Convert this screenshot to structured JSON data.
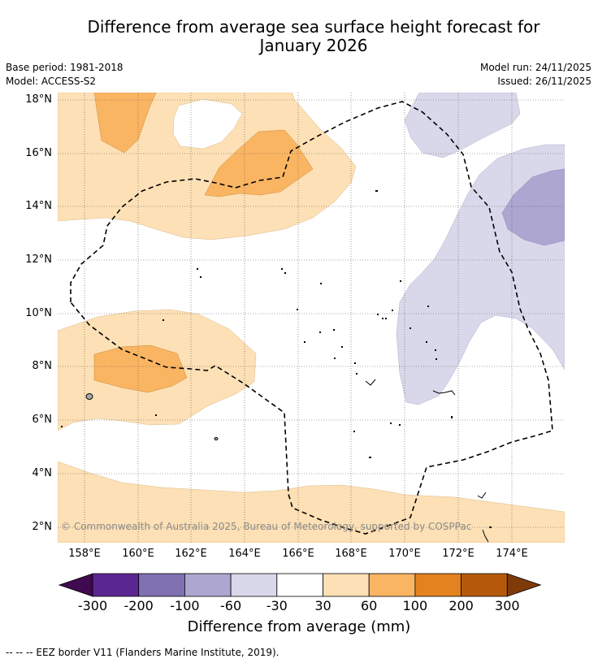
{
  "title_line1": "Difference from average sea surface height forecast for",
  "title_line2": "January 2026",
  "base_period": "Base period: 1981-2018",
  "model": "Model: ACCESS-S2",
  "model_run": "Model run: 24/11/2025",
  "issued": "Issued: 26/11/2025",
  "lat_labels": [
    "18°N",
    "16°N",
    "14°N",
    "12°N",
    "10°N",
    "8°N",
    "6°N",
    "4°N",
    "2°N"
  ],
  "lon_labels": [
    "158°E",
    "160°E",
    "162°E",
    "164°E",
    "166°E",
    "168°E",
    "170°E",
    "172°E",
    "174°E"
  ],
  "copyright": "© Commonwealth of Australia 2025, Bureau of Meteorology, supported by COSPPac",
  "colorbar": {
    "ticks": [
      "-300",
      "-200",
      "-100",
      "-60",
      "-30",
      "30",
      "60",
      "100",
      "200",
      "300"
    ],
    "colors": [
      "#3f0a4f",
      "#5a2792",
      "#8071b2",
      "#ada6d0",
      "#d8d8ea",
      "#ffffff",
      "#fde0b5",
      "#fab562",
      "#e3821f",
      "#b55a0c",
      "#7f3a0a"
    ],
    "title": "Difference from average (mm)"
  },
  "footer": "--  --  -- EEZ border V11 (Flanders Marine Institute, 2019)."
}
